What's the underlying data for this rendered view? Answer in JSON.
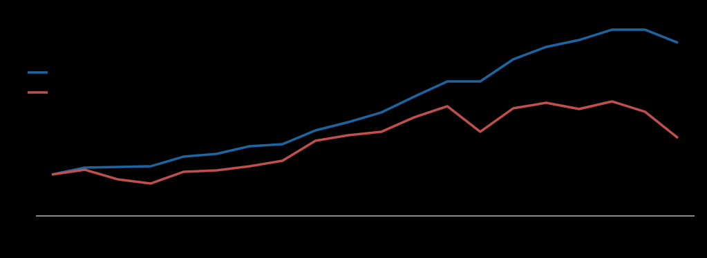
{
  "chart_data": {
    "type": "line",
    "categories": [
      null,
      null,
      null,
      null,
      null,
      null,
      null,
      null,
      null,
      null,
      null,
      null,
      null,
      null,
      null,
      null,
      null,
      null,
      null,
      null
    ],
    "series": [
      {
        "color": "#1d65a0",
        "values": [
          60,
          70,
          71,
          72,
          86,
          90,
          101,
          104,
          124,
          136,
          150,
          173,
          195,
          195,
          227,
          245,
          255,
          270,
          270,
          251
        ]
      },
      {
        "color": "#c0504d",
        "values": [
          60,
          67,
          53,
          47,
          64,
          66,
          72,
          80,
          109,
          117,
          122,
          143,
          159,
          122,
          156,
          164,
          155,
          166,
          151,
          113
        ]
      }
    ],
    "ylim": [
      0,
      300
    ]
  }
}
